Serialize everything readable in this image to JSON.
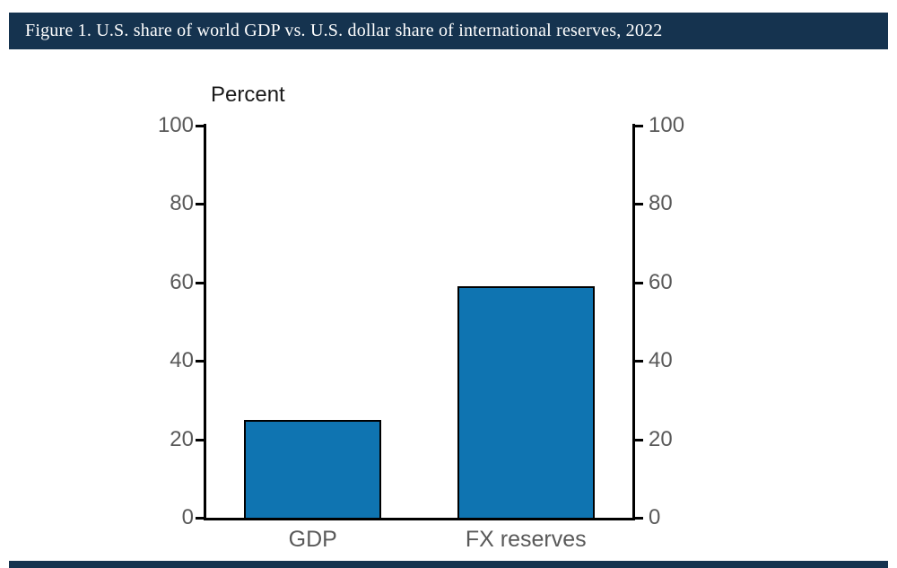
{
  "header": {
    "title": "Figure 1. U.S. share of world GDP vs. U.S. dollar share of international reserves, 2022"
  },
  "chart_data": {
    "type": "bar",
    "categories": [
      "GDP",
      "FX reserves"
    ],
    "values": [
      25,
      59
    ],
    "title": "Percent",
    "xlabel": "",
    "ylabel": "Percent",
    "ylim": [
      0,
      100
    ],
    "yticks": [
      0,
      20,
      40,
      60,
      80,
      100
    ],
    "dual_y_axis": true,
    "grid": false,
    "legend_position": "none",
    "bar_color": "#0f74b1",
    "bar_border_color": "#000000",
    "axis_color": "#000000",
    "tick_label_color": "#595959",
    "cat_label_color": "#595959"
  },
  "colors": {
    "header_bg": "#15334f",
    "header_text": "#ffffff",
    "background": "#ffffff"
  }
}
